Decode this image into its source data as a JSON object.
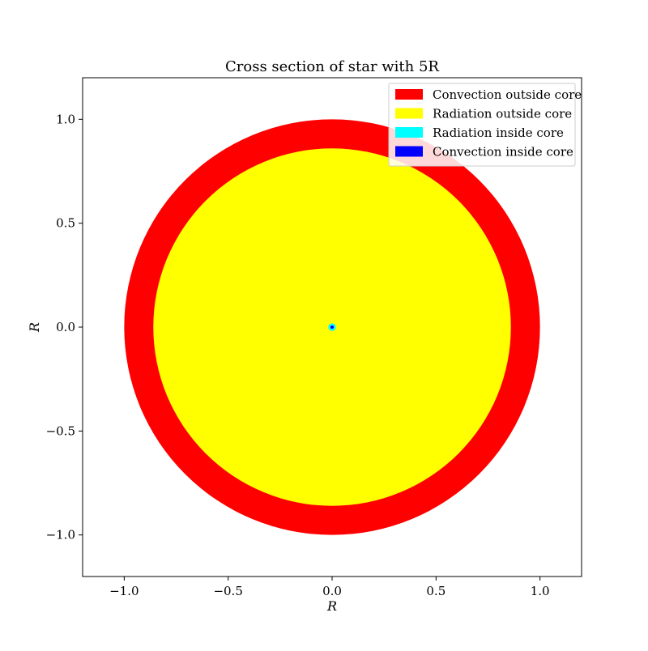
{
  "chart_data": {
    "type": "area",
    "title": "Cross section of star with 5R",
    "xlabel": "R",
    "ylabel": "R",
    "xlim": [
      -1.2,
      1.2
    ],
    "ylim": [
      -1.2,
      1.2
    ],
    "x_ticks": [
      -1.0,
      -0.5,
      0.0,
      0.5,
      1.0
    ],
    "y_ticks": [
      -1.0,
      -0.5,
      0.0,
      0.5,
      1.0
    ],
    "x_tick_labels": [
      "−1.0",
      "−0.5",
      "0.0",
      "0.5",
      "1.0"
    ],
    "y_tick_labels": [
      "−1.0",
      "−0.5",
      "0.0",
      "0.5",
      "1.0"
    ],
    "grid": false,
    "legend_position": "top-right",
    "shells": [
      {
        "name": "Convection outside core",
        "color": "#ff0000",
        "outer_radius": 1.0,
        "inner_radius": 0.86
      },
      {
        "name": "Radiation outside core",
        "color": "#ffff00",
        "outer_radius": 0.86,
        "inner_radius": 0.012
      },
      {
        "name": "Radiation inside core",
        "color": "#00ffff",
        "outer_radius": 0.018,
        "inner_radius": 0.008
      },
      {
        "name": "Convection inside core",
        "color": "#0000ff",
        "outer_radius": 0.008,
        "inner_radius": 0.0
      }
    ],
    "legend": [
      {
        "label": "Convection outside core",
        "color": "#ff0000"
      },
      {
        "label": "Radiation outside core",
        "color": "#ffff00"
      },
      {
        "label": "Radiation inside core",
        "color": "#00ffff"
      },
      {
        "label": "Convection inside core",
        "color": "#0000ff"
      }
    ]
  }
}
